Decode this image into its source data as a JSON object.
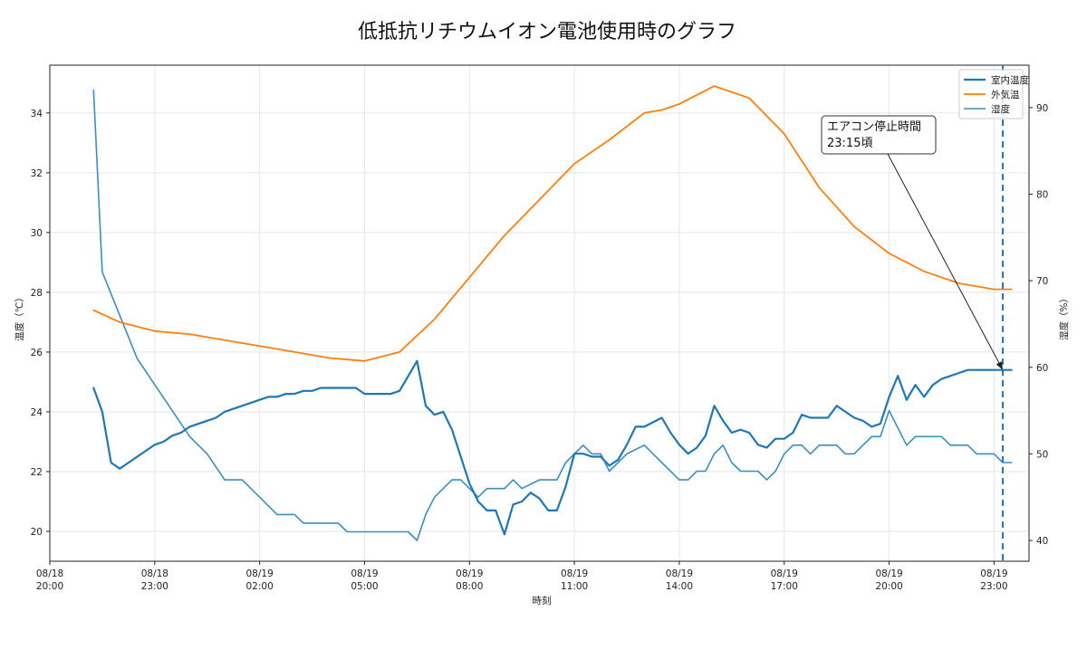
{
  "chart_data": {
    "type": "line",
    "title": "低抵抗リチウムイオン電池使用時のグラフ",
    "xlabel": "時刻",
    "ylabel_left": "温度（℃）",
    "ylabel_right": "湿度（%）",
    "x_range": [
      "08/18 20:00",
      "08/20 00:00"
    ],
    "ylim_left": [
      19.0,
      35.6
    ],
    "ylim_right": [
      37.6,
      94.9
    ],
    "grid": true,
    "legend_placement": "top-right",
    "x_ticks": [
      {
        "at": "08/18 20:00",
        "line1": "08/18",
        "line2": "20:00"
      },
      {
        "at": "08/18 23:00",
        "line1": "08/18",
        "line2": "23:00"
      },
      {
        "at": "08/19 02:00",
        "line1": "08/19",
        "line2": "02:00"
      },
      {
        "at": "08/19 05:00",
        "line1": "08/19",
        "line2": "05:00"
      },
      {
        "at": "08/19 08:00",
        "line1": "08/19",
        "line2": "08:00"
      },
      {
        "at": "08/19 11:00",
        "line1": "08/19",
        "line2": "11:00"
      },
      {
        "at": "08/19 14:00",
        "line1": "08/19",
        "line2": "14:00"
      },
      {
        "at": "08/19 17:00",
        "line1": "08/19",
        "line2": "17:00"
      },
      {
        "at": "08/19 20:00",
        "line1": "08/19",
        "line2": "20:00"
      },
      {
        "at": "08/19 23:00",
        "line1": "08/19",
        "line2": "23:00"
      }
    ],
    "y_ticks_left": [
      20,
      22,
      24,
      26,
      28,
      30,
      32,
      34
    ],
    "y_ticks_right": [
      40,
      50,
      60,
      70,
      80,
      90
    ],
    "series": [
      {
        "name": "室内温度",
        "axis": "left",
        "color": "#1f77b4",
        "width": 2.2,
        "points": [
          [
            "08/18 21:15",
            24.8
          ],
          [
            "08/18 21:30",
            24.0
          ],
          [
            "08/18 21:45",
            22.3
          ],
          [
            "08/18 22:00",
            22.1
          ],
          [
            "08/18 22:15",
            22.3
          ],
          [
            "08/18 22:30",
            22.5
          ],
          [
            "08/18 22:45",
            22.7
          ],
          [
            "08/18 23:00",
            22.9
          ],
          [
            "08/18 23:15",
            23.0
          ],
          [
            "08/18 23:30",
            23.2
          ],
          [
            "08/18 23:45",
            23.3
          ],
          [
            "08/19 00:00",
            23.5
          ],
          [
            "08/19 00:30",
            23.7
          ],
          [
            "08/19 00:45",
            23.8
          ],
          [
            "08/19 01:00",
            24.0
          ],
          [
            "08/19 01:30",
            24.2
          ],
          [
            "08/19 02:00",
            24.4
          ],
          [
            "08/19 02:15",
            24.5
          ],
          [
            "08/19 02:30",
            24.5
          ],
          [
            "08/19 02:45",
            24.6
          ],
          [
            "08/19 03:00",
            24.6
          ],
          [
            "08/19 03:15",
            24.7
          ],
          [
            "08/19 03:30",
            24.7
          ],
          [
            "08/19 03:45",
            24.8
          ],
          [
            "08/19 04:00",
            24.8
          ],
          [
            "08/19 04:30",
            24.8
          ],
          [
            "08/19 04:45",
            24.8
          ],
          [
            "08/19 05:00",
            24.6
          ],
          [
            "08/19 05:30",
            24.6
          ],
          [
            "08/19 05:45",
            24.6
          ],
          [
            "08/19 06:00",
            24.7
          ],
          [
            "08/19 06:30",
            25.7
          ],
          [
            "08/19 06:45",
            24.2
          ],
          [
            "08/19 07:00",
            23.9
          ],
          [
            "08/19 07:15",
            24.0
          ],
          [
            "08/19 07:30",
            23.4
          ],
          [
            "08/19 08:00",
            21.6
          ],
          [
            "08/19 08:15",
            21.0
          ],
          [
            "08/19 08:30",
            20.7
          ],
          [
            "08/19 08:45",
            20.7
          ],
          [
            "08/19 09:00",
            19.9
          ],
          [
            "08/19 09:15",
            20.9
          ],
          [
            "08/19 09:30",
            21.0
          ],
          [
            "08/19 09:45",
            21.3
          ],
          [
            "08/19 10:00",
            21.1
          ],
          [
            "08/19 10:15",
            20.7
          ],
          [
            "08/19 10:30",
            20.7
          ],
          [
            "08/19 10:45",
            21.5
          ],
          [
            "08/19 11:00",
            22.6
          ],
          [
            "08/19 11:15",
            22.6
          ],
          [
            "08/19 11:30",
            22.5
          ],
          [
            "08/19 11:45",
            22.5
          ],
          [
            "08/19 12:00",
            22.2
          ],
          [
            "08/19 12:15",
            22.4
          ],
          [
            "08/19 12:30",
            22.9
          ],
          [
            "08/19 12:45",
            23.5
          ],
          [
            "08/19 13:00",
            23.5
          ],
          [
            "08/19 13:30",
            23.8
          ],
          [
            "08/19 13:45",
            23.3
          ],
          [
            "08/19 14:00",
            22.9
          ],
          [
            "08/19 14:15",
            22.6
          ],
          [
            "08/19 14:30",
            22.8
          ],
          [
            "08/19 14:45",
            23.2
          ],
          [
            "08/19 15:00",
            24.2
          ],
          [
            "08/19 15:15",
            23.7
          ],
          [
            "08/19 15:30",
            23.3
          ],
          [
            "08/19 15:45",
            23.4
          ],
          [
            "08/19 16:00",
            23.3
          ],
          [
            "08/19 16:15",
            22.9
          ],
          [
            "08/19 16:30",
            22.8
          ],
          [
            "08/19 16:45",
            23.1
          ],
          [
            "08/19 17:00",
            23.1
          ],
          [
            "08/19 17:15",
            23.3
          ],
          [
            "08/19 17:30",
            23.9
          ],
          [
            "08/19 17:45",
            23.8
          ],
          [
            "08/19 18:00",
            23.8
          ],
          [
            "08/19 18:15",
            23.8
          ],
          [
            "08/19 18:30",
            24.2
          ],
          [
            "08/19 18:45",
            24.0
          ],
          [
            "08/19 19:00",
            23.8
          ],
          [
            "08/19 19:15",
            23.7
          ],
          [
            "08/19 19:30",
            23.5
          ],
          [
            "08/19 19:45",
            23.6
          ],
          [
            "08/19 20:00",
            24.5
          ],
          [
            "08/19 20:15",
            25.2
          ],
          [
            "08/19 20:30",
            24.4
          ],
          [
            "08/19 20:45",
            24.9
          ],
          [
            "08/19 21:00",
            24.5
          ],
          [
            "08/19 21:15",
            24.9
          ],
          [
            "08/19 21:30",
            25.1
          ],
          [
            "08/19 22:00",
            25.3
          ],
          [
            "08/19 22:15",
            25.4
          ],
          [
            "08/19 23:00",
            25.4
          ],
          [
            "08/19 23:15",
            25.4
          ],
          [
            "08/19 23:30",
            25.4
          ]
        ]
      },
      {
        "name": "外気温",
        "axis": "left",
        "color": "#ff7f0e",
        "width": 1.8,
        "points": [
          [
            "08/18 21:15",
            27.4
          ],
          [
            "08/18 22:00",
            27.0
          ],
          [
            "08/18 23:00",
            26.7
          ],
          [
            "08/19 00:00",
            26.6
          ],
          [
            "08/19 01:00",
            26.4
          ],
          [
            "08/19 02:00",
            26.2
          ],
          [
            "08/19 03:00",
            26.0
          ],
          [
            "08/19 04:00",
            25.8
          ],
          [
            "08/19 05:00",
            25.7
          ],
          [
            "08/19 06:00",
            26.0
          ],
          [
            "08/19 07:00",
            27.1
          ],
          [
            "08/19 08:00",
            28.5
          ],
          [
            "08/19 09:00",
            29.9
          ],
          [
            "08/19 10:00",
            31.1
          ],
          [
            "08/19 11:00",
            32.3
          ],
          [
            "08/19 12:00",
            33.1
          ],
          [
            "08/19 13:00",
            34.0
          ],
          [
            "08/19 13:30",
            34.1
          ],
          [
            "08/19 14:00",
            34.3
          ],
          [
            "08/19 15:00",
            34.9
          ],
          [
            "08/19 16:00",
            34.5
          ],
          [
            "08/19 17:00",
            33.3
          ],
          [
            "08/19 18:00",
            31.5
          ],
          [
            "08/19 19:00",
            30.2
          ],
          [
            "08/19 20:00",
            29.3
          ],
          [
            "08/19 21:00",
            28.7
          ],
          [
            "08/19 22:00",
            28.3
          ],
          [
            "08/19 23:00",
            28.1
          ],
          [
            "08/19 23:30",
            28.1
          ]
        ]
      },
      {
        "name": "湿度",
        "axis": "right",
        "color": "#3b8ec2",
        "width": 1.6,
        "points": [
          [
            "08/18 21:15",
            92.0
          ],
          [
            "08/18 21:30",
            71.0
          ],
          [
            "08/18 22:00",
            66.0
          ],
          [
            "08/18 22:30",
            61.0
          ],
          [
            "08/18 23:00",
            58.0
          ],
          [
            "08/18 23:30",
            55.0
          ],
          [
            "08/19 00:00",
            52.0
          ],
          [
            "08/19 00:30",
            50.0
          ],
          [
            "08/19 01:00",
            47.0
          ],
          [
            "08/19 01:30",
            47.0
          ],
          [
            "08/19 02:00",
            45.0
          ],
          [
            "08/19 02:30",
            43.0
          ],
          [
            "08/19 03:00",
            43.0
          ],
          [
            "08/19 03:15",
            42.0
          ],
          [
            "08/19 03:30",
            42.0
          ],
          [
            "08/19 04:00",
            42.0
          ],
          [
            "08/19 04:15",
            42.0
          ],
          [
            "08/19 04:30",
            41.0
          ],
          [
            "08/19 05:00",
            41.0
          ],
          [
            "08/19 05:30",
            41.0
          ],
          [
            "08/19 06:00",
            41.0
          ],
          [
            "08/19 06:15",
            41.0
          ],
          [
            "08/19 06:30",
            40.0
          ],
          [
            "08/19 06:45",
            43.0
          ],
          [
            "08/19 07:00",
            45.0
          ],
          [
            "08/19 07:30",
            47.0
          ],
          [
            "08/19 07:45",
            47.0
          ],
          [
            "08/19 08:00",
            46.0
          ],
          [
            "08/19 08:15",
            45.0
          ],
          [
            "08/19 08:30",
            46.0
          ],
          [
            "08/19 09:00",
            46.0
          ],
          [
            "08/19 09:15",
            47.0
          ],
          [
            "08/19 09:30",
            46.0
          ],
          [
            "08/19 10:00",
            47.0
          ],
          [
            "08/19 10:30",
            47.0
          ],
          [
            "08/19 10:45",
            49.0
          ],
          [
            "08/19 11:00",
            50.0
          ],
          [
            "08/19 11:15",
            51.0
          ],
          [
            "08/19 11:30",
            50.0
          ],
          [
            "08/19 11:45",
            50.0
          ],
          [
            "08/19 12:00",
            48.0
          ],
          [
            "08/19 12:30",
            50.0
          ],
          [
            "08/19 13:00",
            51.0
          ],
          [
            "08/19 13:30",
            49.0
          ],
          [
            "08/19 14:00",
            47.0
          ],
          [
            "08/19 14:15",
            47.0
          ],
          [
            "08/19 14:30",
            48.0
          ],
          [
            "08/19 14:45",
            48.0
          ],
          [
            "08/19 15:00",
            50.0
          ],
          [
            "08/19 15:15",
            51.0
          ],
          [
            "08/19 15:30",
            49.0
          ],
          [
            "08/19 15:45",
            48.0
          ],
          [
            "08/19 16:00",
            48.0
          ],
          [
            "08/19 16:15",
            48.0
          ],
          [
            "08/19 16:30",
            47.0
          ],
          [
            "08/19 16:45",
            48.0
          ],
          [
            "08/19 17:00",
            50.0
          ],
          [
            "08/19 17:15",
            51.0
          ],
          [
            "08/19 17:30",
            51.0
          ],
          [
            "08/19 17:45",
            50.0
          ],
          [
            "08/19 18:00",
            51.0
          ],
          [
            "08/19 18:30",
            51.0
          ],
          [
            "08/19 18:45",
            50.0
          ],
          [
            "08/19 19:00",
            50.0
          ],
          [
            "08/19 19:30",
            52.0
          ],
          [
            "08/19 19:45",
            52.0
          ],
          [
            "08/19 20:00",
            55.0
          ],
          [
            "08/19 20:15",
            53.0
          ],
          [
            "08/19 20:30",
            51.0
          ],
          [
            "08/19 20:45",
            52.0
          ],
          [
            "08/19 21:00",
            52.0
          ],
          [
            "08/19 21:30",
            52.0
          ],
          [
            "08/19 21:45",
            51.0
          ],
          [
            "08/19 22:15",
            51.0
          ],
          [
            "08/19 22:30",
            50.0
          ],
          [
            "08/19 23:00",
            50.0
          ],
          [
            "08/19 23:15",
            49.0
          ],
          [
            "08/19 23:30",
            49.0
          ]
        ]
      }
    ],
    "vline": {
      "at": "08/19 23:15",
      "color": "#1f77b4",
      "style": "dashed"
    },
    "annotation": {
      "line1": "エアコン停止時間",
      "line2": "23:15頃",
      "target": [
        "08/19 23:15",
        25.4
      ]
    }
  }
}
